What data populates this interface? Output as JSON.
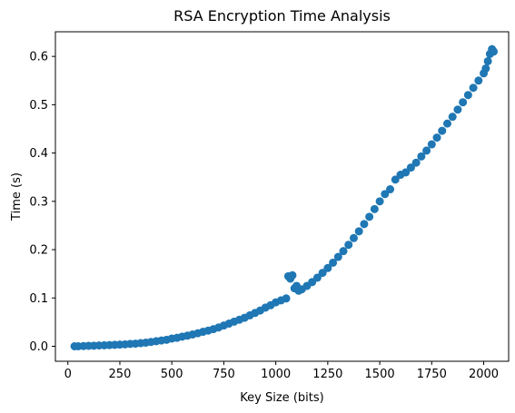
{
  "chart_data": {
    "type": "scatter",
    "title": "RSA Encryption Time Analysis",
    "xlabel": "Key Size (bits)",
    "ylabel": "Time (s)",
    "xlim": [
      -60,
      2120
    ],
    "ylim": [
      -0.031,
      0.651
    ],
    "xticks": [
      0,
      250,
      500,
      750,
      1000,
      1250,
      1500,
      1750,
      2000
    ],
    "yticks": [
      0.0,
      0.1,
      0.2,
      0.3,
      0.4,
      0.5,
      0.6
    ],
    "ytick_labels": [
      "0.0",
      "0.1",
      "0.2",
      "0.3",
      "0.4",
      "0.5",
      "0.6"
    ],
    "grid": false,
    "legend": "none",
    "marker_color": "#1f77b4",
    "series": [
      {
        "x": [
          32,
          50,
          75,
          100,
          125,
          150,
          175,
          200,
          225,
          250,
          275,
          300,
          325,
          350,
          375,
          400,
          425,
          450,
          475,
          500,
          525,
          550,
          575,
          600,
          625,
          650,
          675,
          700,
          725,
          750,
          775,
          800,
          825,
          850,
          875,
          900,
          925,
          950,
          975,
          1000,
          1025,
          1050,
          1060,
          1070,
          1080,
          1090,
          1100,
          1110,
          1125,
          1150,
          1175,
          1200,
          1225,
          1250,
          1275,
          1300,
          1325,
          1350,
          1375,
          1400,
          1425,
          1450,
          1475,
          1500,
          1525,
          1550,
          1575,
          1600,
          1625,
          1650,
          1675,
          1700,
          1725,
          1750,
          1775,
          1800,
          1825,
          1850,
          1875,
          1900,
          1925,
          1950,
          1975,
          2000,
          2010,
          2020,
          2030,
          2040,
          2048
        ],
        "y": [
          0.0,
          0.0,
          0.0005,
          0.001,
          0.0012,
          0.0017,
          0.002,
          0.0025,
          0.003,
          0.0035,
          0.004,
          0.005,
          0.0055,
          0.0065,
          0.0075,
          0.009,
          0.0105,
          0.012,
          0.0135,
          0.016,
          0.0175,
          0.02,
          0.022,
          0.0245,
          0.027,
          0.03,
          0.0325,
          0.0355,
          0.039,
          0.043,
          0.047,
          0.051,
          0.055,
          0.059,
          0.064,
          0.069,
          0.074,
          0.08,
          0.085,
          0.091,
          0.095,
          0.099,
          0.145,
          0.14,
          0.147,
          0.12,
          0.125,
          0.115,
          0.118,
          0.125,
          0.133,
          0.142,
          0.152,
          0.162,
          0.173,
          0.185,
          0.197,
          0.21,
          0.224,
          0.238,
          0.253,
          0.268,
          0.284,
          0.3,
          0.315,
          0.325,
          0.345,
          0.355,
          0.36,
          0.37,
          0.38,
          0.393,
          0.405,
          0.418,
          0.432,
          0.446,
          0.461,
          0.475,
          0.49,
          0.505,
          0.52,
          0.535,
          0.55,
          0.565,
          0.575,
          0.59,
          0.605,
          0.615,
          0.61
        ]
      }
    ]
  }
}
